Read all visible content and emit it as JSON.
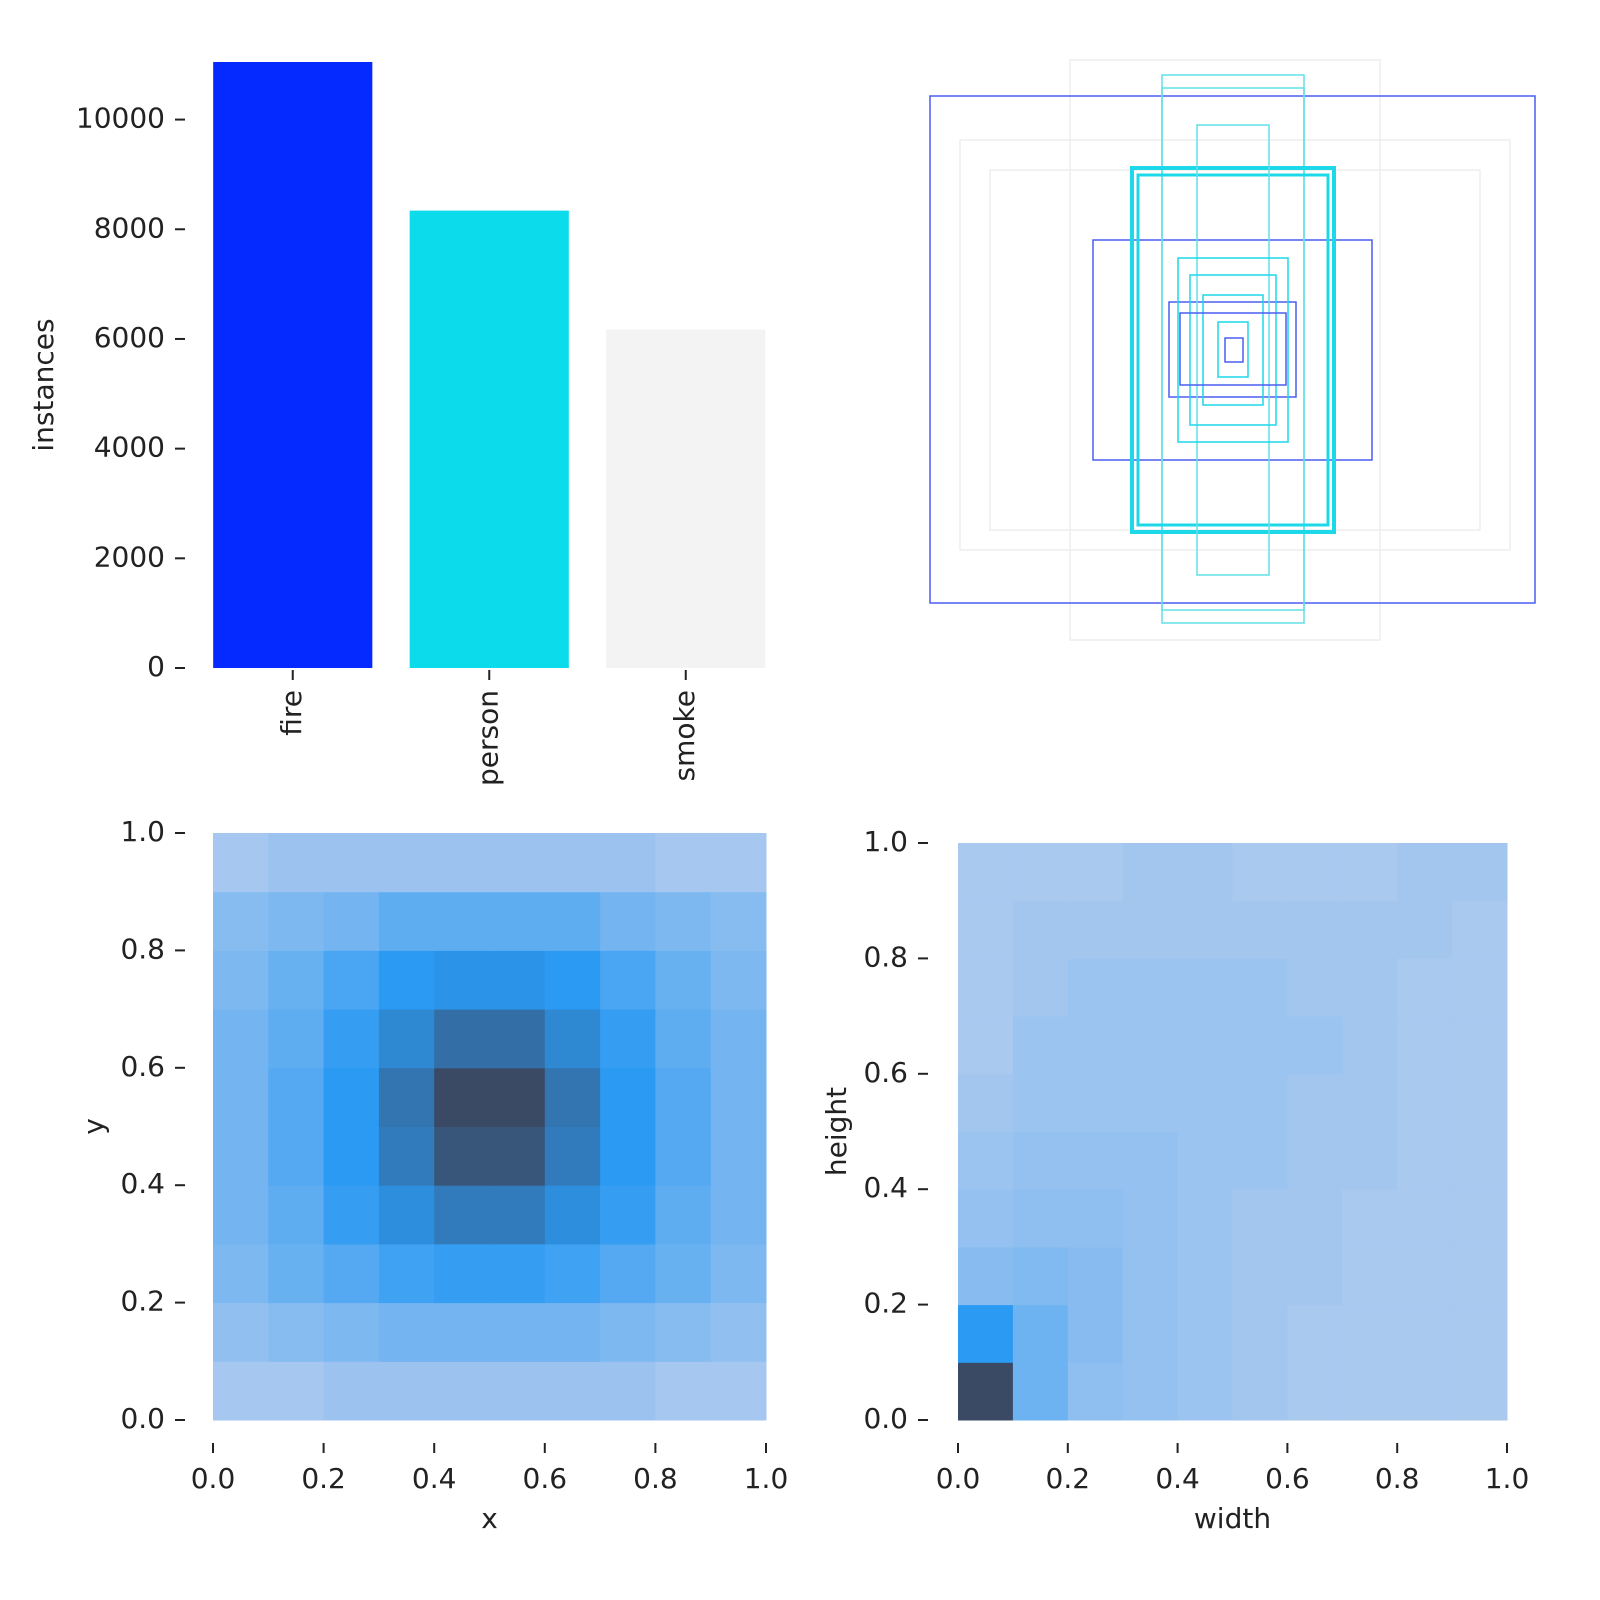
{
  "chart_data": [
    {
      "type": "bar",
      "ylabel": "instances",
      "categories": [
        "fire",
        "person",
        "smoke"
      ],
      "values": [
        11050,
        8340,
        6170
      ],
      "colors": [
        "#042aff",
        "#0bdbeb",
        "#f3f3f3"
      ],
      "ylim": [
        0,
        11050
      ],
      "yticks": [
        0,
        2000,
        4000,
        6000,
        8000,
        10000
      ]
    },
    {
      "type": "heatmap",
      "xlabel": "x",
      "ylabel": "y",
      "xlim": [
        0,
        1
      ],
      "ylim": [
        0,
        1
      ],
      "xticks": [
        {
          "value": 0,
          "label": "0.0"
        },
        0.2,
        0.4,
        0.6,
        0.8,
        {
          "value": 1,
          "label": "1.0"
        }
      ],
      "yticks": [
        {
          "value": 0,
          "label": "0.0"
        },
        0.2,
        0.4,
        0.6,
        0.8,
        {
          "value": 1,
          "label": "1.0"
        }
      ],
      "cmap": [
        "#b0cbef",
        "#2b9af3",
        "#3a4a64"
      ],
      "values": [
        [
          1,
          1,
          2,
          2,
          2,
          2,
          2,
          2,
          1,
          1
        ],
        [
          3,
          4,
          5,
          6,
          6,
          6,
          6,
          5,
          4,
          3
        ],
        [
          5,
          7,
          9,
          11,
          12,
          12,
          11,
          9,
          7,
          5
        ],
        [
          6,
          8,
          12,
          15,
          18,
          18,
          15,
          12,
          8,
          6
        ],
        [
          6,
          9,
          13,
          18,
          24,
          24,
          18,
          13,
          9,
          6
        ],
        [
          6,
          9,
          13,
          19,
          26,
          26,
          19,
          13,
          9,
          6
        ],
        [
          6,
          8,
          12,
          16,
          20,
          20,
          16,
          12,
          8,
          6
        ],
        [
          5,
          7,
          10,
          13,
          14,
          14,
          13,
          10,
          7,
          5
        ],
        [
          4,
          5,
          6,
          8,
          8,
          8,
          8,
          6,
          5,
          4
        ],
        [
          1,
          2,
          2,
          2,
          2,
          2,
          2,
          2,
          1,
          1
        ]
      ]
    },
    {
      "type": "heatmap",
      "xlabel": "width",
      "ylabel": "height",
      "xlim": [
        0,
        1
      ],
      "ylim": [
        0,
        1
      ],
      "xticks": [
        {
          "value": 0,
          "label": "0.0"
        },
        0.2,
        0.4,
        0.6,
        0.8,
        {
          "value": 1,
          "label": "1.0"
        }
      ],
      "yticks": [
        {
          "value": 0,
          "label": "0.0"
        },
        0.2,
        0.4,
        0.6,
        0.8,
        {
          "value": 1,
          "label": "1.0"
        }
      ],
      "cmap": [
        "#b0cbef",
        "#2b9af3",
        "#3a4a64"
      ],
      "values": [
        [
          40,
          10,
          5,
          4,
          3,
          2,
          1,
          1,
          1,
          1
        ],
        [
          20,
          10,
          6,
          4,
          3,
          2,
          1,
          1,
          1,
          1
        ],
        [
          6,
          7,
          6,
          4,
          3,
          2,
          2,
          1,
          1,
          1
        ],
        [
          4,
          5,
          5,
          4,
          3,
          2,
          2,
          1,
          1,
          1
        ],
        [
          3,
          4,
          4,
          4,
          3,
          3,
          2,
          2,
          1,
          1
        ],
        [
          2,
          3,
          3,
          3,
          3,
          3,
          2,
          2,
          1,
          1
        ],
        [
          1,
          3,
          3,
          3,
          3,
          3,
          3,
          2,
          1,
          1
        ],
        [
          1,
          2,
          3,
          3,
          3,
          3,
          2,
          2,
          1,
          1
        ],
        [
          1,
          2,
          2,
          2,
          2,
          2,
          2,
          2,
          2,
          1
        ],
        [
          1,
          1,
          1,
          2,
          2,
          1,
          1,
          1,
          2,
          2
        ]
      ]
    }
  ]
}
